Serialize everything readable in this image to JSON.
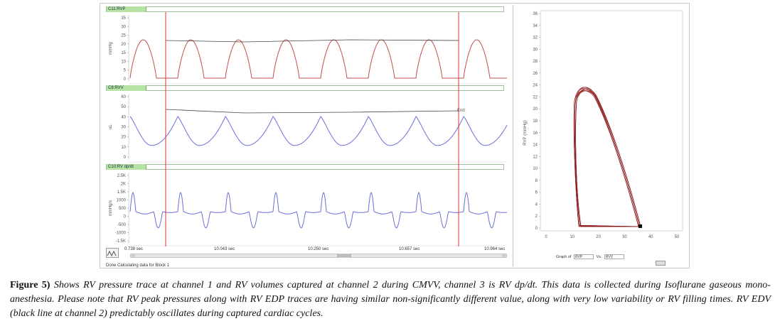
{
  "channels": [
    {
      "label": "C11:RVP",
      "unit": "mmHg",
      "ticks": [
        "35",
        "30",
        "25",
        "20",
        "15",
        "10",
        "5",
        "0"
      ]
    },
    {
      "label": "C8:RVV",
      "unit": "uL",
      "ticks": [
        "60",
        "50",
        "40",
        "30",
        "20",
        "10",
        "0"
      ]
    },
    {
      "label": "C10:RV dp/dt",
      "unit": "mmHg/s",
      "ticks": [
        "2.5K",
        "2K",
        "1.5K",
        "1000",
        "500",
        "0",
        "-500",
        "-1000",
        "-1.5K"
      ]
    }
  ],
  "channel2_marker": "End",
  "time_labels": [
    "0.738 sec",
    "10.043 sec",
    "10.250 sec",
    "10.657 sec",
    "10.964 sec"
  ],
  "status_text": "Done Calculating data for Block 1",
  "loop_plot": {
    "ylabel": "RVP (mmHg)",
    "y_ticks": [
      "36",
      "34",
      "32",
      "30",
      "28",
      "26",
      "24",
      "22",
      "20",
      "18",
      "16",
      "14",
      "12",
      "10",
      "8",
      "6",
      "4",
      "2",
      "0"
    ],
    "x_ticks": [
      "0",
      "10",
      "20",
      "30",
      "40",
      "50"
    ],
    "graph_of_label": "Graph of",
    "graph_of_value": "RVP",
    "vs_label": "Vs.",
    "vs_value": "RVV"
  },
  "caption": {
    "label": "Figure 5)",
    "text": "Shows RV pressure trace at channel 1 and RV volumes captured at channel 2 during CMVV, channel 3 is RV dp/dt. This data is collected during Isoflurane gaseous mono-anesthesia. Please note that RV peak pressures along with RV EDP traces are having similar non-significantly different value, along with very low variability or RV filling times. RV EDV (black line at channel 2) predictably oscillates during captured cardiac cycles."
  },
  "colors": {
    "pressure": "#c0504d",
    "volume": "#6b6fd6",
    "dpdt": "#6b6fd6",
    "marker": "#e03030",
    "loop": "#8b1a1a"
  }
}
